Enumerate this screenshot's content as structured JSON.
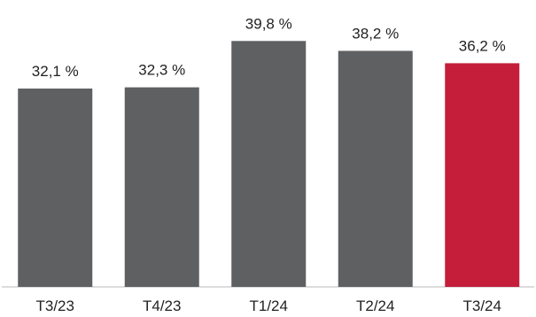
{
  "chart_data": {
    "type": "bar",
    "title": "",
    "xlabel": "",
    "ylabel": "",
    "categories": [
      "T3/23",
      "T4/23",
      "T1/24",
      "T2/24",
      "T3/24"
    ],
    "values": [
      32.1,
      32.3,
      39.8,
      38.2,
      36.2
    ],
    "value_labels": [
      "32,1 %",
      "32,3 %",
      "39,8 %",
      "38,2 %",
      "36,2 %"
    ],
    "ylim": [
      0,
      45
    ],
    "grid": false,
    "legend": "none",
    "colors": {
      "bar": "#5f6062",
      "highlight": "#c41e3a",
      "axis": "#c8c8c8",
      "text": "#222222"
    },
    "highlight_index": 4
  }
}
